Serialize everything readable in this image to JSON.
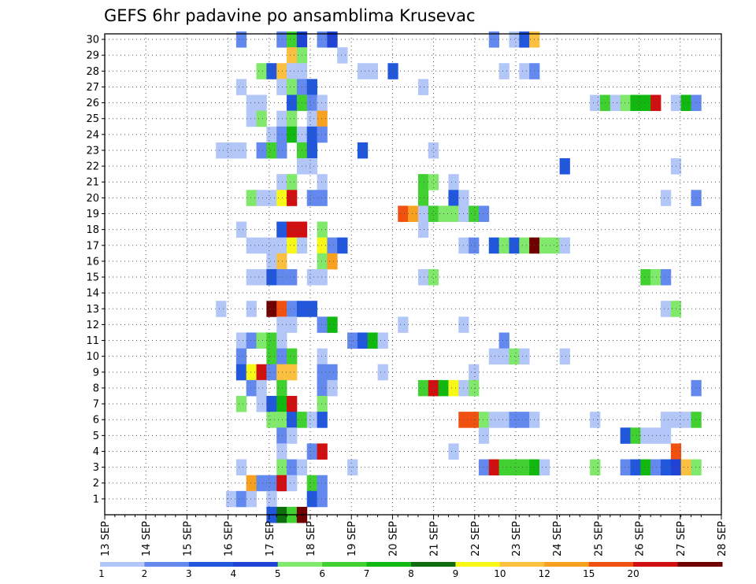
{
  "chart_data": {
    "type": "heatmap",
    "title": "GEFS 6hr padavine po ansamblima Krusevac",
    "x_ticks": [
      "13 SEP",
      "14 SEP",
      "15 SEP",
      "16 SEP",
      "17 SEP",
      "18 SEP",
      "19 SEP",
      "20 SEP",
      "21 SEP",
      "22 SEP",
      "23 SEP",
      "24 SEP",
      "25 SEP",
      "26 SEP",
      "27 SEP",
      "28 SEP"
    ],
    "x_range": [
      0,
      61
    ],
    "y_ticks": [
      "1",
      "2",
      "3",
      "4",
      "5",
      "6",
      "7",
      "8",
      "9",
      "10",
      "11",
      "12",
      "13",
      "14",
      "15",
      "16",
      "17",
      "18",
      "19",
      "20",
      "21",
      "22",
      "23",
      "24",
      "25",
      "26",
      "27",
      "28",
      "29",
      "30"
    ],
    "y_range": [
      0,
      30
    ],
    "grid": true,
    "colorbar": {
      "labels": [
        "1",
        "2",
        "3",
        "4",
        "5",
        "6",
        "7",
        "8",
        "9",
        "10",
        "12",
        "15",
        "20"
      ],
      "colors": [
        "#b3c6f8",
        "#6489ee",
        "#2157dc",
        "#1f43d4",
        "#80e86a",
        "#40d030",
        "#10b810",
        "#0e6e0e",
        "#f8f818",
        "#fcc040",
        "#f8a020",
        "#f05010",
        "#d01010",
        "#700000"
      ]
    },
    "cells": [
      {
        "m": 30,
        "d": [
          [
            13,
            2
          ],
          [
            17,
            2
          ],
          [
            18,
            6
          ],
          [
            19,
            4
          ],
          [
            21,
            2
          ],
          [
            22,
            4
          ],
          [
            38,
            2
          ],
          [
            40,
            1
          ],
          [
            41,
            3
          ],
          [
            42,
            10
          ]
        ]
      },
      {
        "m": 29,
        "d": [
          [
            18,
            10
          ],
          [
            19,
            5
          ],
          [
            23,
            1
          ]
        ]
      },
      {
        "m": 28,
        "d": [
          [
            15,
            5
          ],
          [
            16,
            3
          ],
          [
            17,
            10
          ],
          [
            18,
            1
          ],
          [
            19,
            1
          ],
          [
            25,
            1
          ],
          [
            26,
            1
          ],
          [
            28,
            3
          ],
          [
            39,
            1
          ],
          [
            41,
            1
          ],
          [
            42,
            2
          ]
        ]
      },
      {
        "m": 27,
        "d": [
          [
            13,
            1
          ],
          [
            17,
            1
          ],
          [
            18,
            5
          ],
          [
            19,
            2
          ],
          [
            20,
            3
          ],
          [
            31,
            1
          ]
        ]
      },
      {
        "m": 26,
        "d": [
          [
            14,
            1
          ],
          [
            15,
            1
          ],
          [
            18,
            3
          ],
          [
            19,
            6
          ],
          [
            20,
            2
          ],
          [
            21,
            1
          ],
          [
            48,
            1
          ],
          [
            49,
            6
          ],
          [
            50,
            1
          ],
          [
            51,
            5
          ],
          [
            52,
            7
          ],
          [
            53,
            7
          ],
          [
            54,
            13
          ],
          [
            56,
            1
          ],
          [
            57,
            7
          ],
          [
            58,
            2
          ]
        ]
      },
      {
        "m": 25,
        "d": [
          [
            14,
            1
          ],
          [
            15,
            5
          ],
          [
            17,
            1
          ],
          [
            18,
            5
          ],
          [
            20,
            1
          ],
          [
            21,
            11
          ]
        ]
      },
      {
        "m": 24,
        "d": [
          [
            16,
            1
          ],
          [
            17,
            2
          ],
          [
            18,
            7
          ],
          [
            19,
            1
          ],
          [
            20,
            3
          ],
          [
            21,
            2
          ]
        ]
      },
      {
        "m": 23,
        "d": [
          [
            11,
            1
          ],
          [
            12,
            1
          ],
          [
            13,
            1
          ],
          [
            15,
            2
          ],
          [
            16,
            6
          ],
          [
            17,
            2
          ],
          [
            19,
            6
          ],
          [
            20,
            3
          ],
          [
            25,
            3
          ],
          [
            32,
            1
          ]
        ]
      },
      {
        "m": 22,
        "d": [
          [
            19,
            1
          ],
          [
            20,
            1
          ],
          [
            45,
            3
          ],
          [
            56,
            1
          ]
        ]
      },
      {
        "m": 21,
        "d": [
          [
            17,
            1
          ],
          [
            18,
            5
          ],
          [
            21,
            1
          ],
          [
            31,
            6
          ],
          [
            32,
            5
          ],
          [
            34,
            1
          ]
        ]
      },
      {
        "m": 20,
        "d": [
          [
            14,
            5
          ],
          [
            15,
            1
          ],
          [
            16,
            1
          ],
          [
            17,
            9
          ],
          [
            18,
            13
          ],
          [
            20,
            2
          ],
          [
            21,
            2
          ],
          [
            31,
            6
          ],
          [
            34,
            3
          ],
          [
            35,
            1
          ],
          [
            55,
            1
          ],
          [
            58,
            2
          ]
        ]
      },
      {
        "m": 19,
        "d": [
          [
            29,
            12
          ],
          [
            30,
            11
          ],
          [
            31,
            1
          ],
          [
            32,
            6
          ],
          [
            33,
            5
          ],
          [
            34,
            5
          ],
          [
            35,
            1
          ],
          [
            36,
            6
          ],
          [
            37,
            2
          ]
        ]
      },
      {
        "m": 18,
        "d": [
          [
            13,
            1
          ],
          [
            17,
            3
          ],
          [
            18,
            13
          ],
          [
            19,
            13
          ],
          [
            21,
            5
          ],
          [
            31,
            1
          ]
        ]
      },
      {
        "m": 17,
        "d": [
          [
            14,
            1
          ],
          [
            15,
            1
          ],
          [
            16,
            1
          ],
          [
            17,
            1
          ],
          [
            18,
            9
          ],
          [
            19,
            1
          ],
          [
            21,
            9
          ],
          [
            22,
            2
          ],
          [
            23,
            3
          ],
          [
            35,
            1
          ],
          [
            36,
            2
          ],
          [
            38,
            3
          ],
          [
            39,
            5
          ],
          [
            40,
            3
          ],
          [
            41,
            5
          ],
          [
            42,
            14
          ],
          [
            43,
            5
          ],
          [
            44,
            5
          ],
          [
            45,
            1
          ]
        ]
      },
      {
        "m": 16,
        "d": [
          [
            16,
            1
          ],
          [
            17,
            10
          ],
          [
            21,
            5
          ],
          [
            22,
            11
          ]
        ]
      },
      {
        "m": 15,
        "d": [
          [
            14,
            1
          ],
          [
            15,
            1
          ],
          [
            16,
            3
          ],
          [
            17,
            2
          ],
          [
            18,
            2
          ],
          [
            20,
            1
          ],
          [
            21,
            1
          ],
          [
            31,
            1
          ],
          [
            32,
            5
          ],
          [
            53,
            6
          ],
          [
            54,
            5
          ],
          [
            55,
            2
          ]
        ]
      },
      {
        "m": 14,
        "d": []
      },
      {
        "m": 13,
        "d": [
          [
            11,
            1
          ],
          [
            14,
            1
          ],
          [
            16,
            14
          ],
          [
            17,
            12
          ],
          [
            18,
            2
          ],
          [
            19,
            3
          ],
          [
            20,
            3
          ],
          [
            55,
            1
          ],
          [
            56,
            5
          ]
        ]
      },
      {
        "m": 12,
        "d": [
          [
            17,
            1
          ],
          [
            18,
            1
          ],
          [
            21,
            2
          ],
          [
            22,
            7
          ],
          [
            29,
            1
          ],
          [
            35,
            1
          ]
        ]
      },
      {
        "m": 11,
        "d": [
          [
            13,
            1
          ],
          [
            14,
            2
          ],
          [
            15,
            5
          ],
          [
            16,
            6
          ],
          [
            17,
            1
          ],
          [
            24,
            2
          ],
          [
            25,
            3
          ],
          [
            26,
            7
          ],
          [
            27,
            1
          ],
          [
            39,
            2
          ]
        ]
      },
      {
        "m": 10,
        "d": [
          [
            13,
            2
          ],
          [
            16,
            6
          ],
          [
            17,
            2
          ],
          [
            18,
            6
          ],
          [
            21,
            1
          ],
          [
            38,
            1
          ],
          [
            39,
            1
          ],
          [
            40,
            5
          ],
          [
            41,
            1
          ],
          [
            45,
            1
          ]
        ]
      },
      {
        "m": 9,
        "d": [
          [
            13,
            3
          ],
          [
            14,
            9
          ],
          [
            15,
            13
          ],
          [
            16,
            2
          ],
          [
            17,
            10
          ],
          [
            18,
            10
          ],
          [
            21,
            2
          ],
          [
            22,
            2
          ],
          [
            27,
            1
          ],
          [
            36,
            1
          ]
        ]
      },
      {
        "m": 8,
        "d": [
          [
            14,
            2
          ],
          [
            15,
            1
          ],
          [
            17,
            6
          ],
          [
            21,
            2
          ],
          [
            22,
            1
          ],
          [
            31,
            6
          ],
          [
            32,
            13
          ],
          [
            33,
            7
          ],
          [
            34,
            9
          ],
          [
            35,
            1
          ],
          [
            36,
            5
          ],
          [
            58,
            2
          ]
        ]
      },
      {
        "m": 7,
        "d": [
          [
            13,
            5
          ],
          [
            15,
            1
          ],
          [
            16,
            3
          ],
          [
            17,
            7
          ],
          [
            18,
            13
          ],
          [
            21,
            5
          ]
        ]
      },
      {
        "m": 6,
        "d": [
          [
            16,
            5
          ],
          [
            17,
            5
          ],
          [
            18,
            3
          ],
          [
            19,
            6
          ],
          [
            20,
            1
          ],
          [
            21,
            3
          ],
          [
            35,
            12
          ],
          [
            36,
            12
          ],
          [
            37,
            5
          ],
          [
            38,
            1
          ],
          [
            39,
            1
          ],
          [
            40,
            2
          ],
          [
            41,
            2
          ],
          [
            42,
            1
          ],
          [
            48,
            1
          ],
          [
            55,
            1
          ],
          [
            56,
            1
          ],
          [
            57,
            1
          ],
          [
            58,
            6
          ]
        ]
      },
      {
        "m": 5,
        "d": [
          [
            17,
            2
          ],
          [
            18,
            1
          ],
          [
            37,
            1
          ],
          [
            51,
            3
          ],
          [
            52,
            6
          ],
          [
            53,
            1
          ],
          [
            54,
            1
          ],
          [
            55,
            1
          ]
        ]
      },
      {
        "m": 4,
        "d": [
          [
            17,
            1
          ],
          [
            20,
            2
          ],
          [
            21,
            13
          ],
          [
            34,
            1
          ],
          [
            56,
            12
          ]
        ]
      },
      {
        "m": 3,
        "d": [
          [
            13,
            1
          ],
          [
            17,
            5
          ],
          [
            18,
            2
          ],
          [
            19,
            1
          ],
          [
            24,
            1
          ],
          [
            37,
            2
          ],
          [
            38,
            13
          ],
          [
            39,
            6
          ],
          [
            40,
            6
          ],
          [
            41,
            6
          ],
          [
            42,
            7
          ],
          [
            43,
            1
          ],
          [
            48,
            5
          ],
          [
            51,
            2
          ],
          [
            52,
            3
          ],
          [
            53,
            7
          ],
          [
            54,
            2
          ],
          [
            55,
            3
          ],
          [
            56,
            4
          ],
          [
            57,
            10
          ],
          [
            58,
            5
          ]
        ]
      },
      {
        "m": 2,
        "d": [
          [
            14,
            11
          ],
          [
            15,
            2
          ],
          [
            16,
            2
          ],
          [
            17,
            13
          ],
          [
            18,
            1
          ],
          [
            20,
            6
          ],
          [
            21,
            2
          ]
        ]
      },
      {
        "m": 1,
        "d": [
          [
            12,
            1
          ],
          [
            13,
            2
          ],
          [
            14,
            1
          ],
          [
            16,
            1
          ],
          [
            20,
            3
          ],
          [
            21,
            2
          ]
        ]
      },
      {
        "m": 0,
        "d": [
          [
            16,
            3
          ],
          [
            17,
            8
          ],
          [
            18,
            6
          ],
          [
            19,
            14
          ]
        ]
      }
    ]
  }
}
